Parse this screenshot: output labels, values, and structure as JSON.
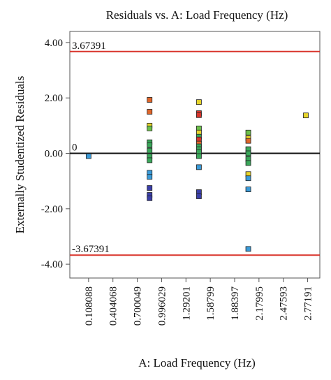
{
  "chart_data": {
    "type": "scatter",
    "title": "Residuals vs. A: Load Frequency (Hz)",
    "xlabel": "A: Load Frequency (Hz)",
    "ylabel": "Externally Studentized Residuals",
    "xlim": [
      -0.12,
      2.92
    ],
    "ylim": [
      -4.5,
      4.4
    ],
    "x_ticks": [
      0.108088,
      0.404068,
      0.700049,
      0.996029,
      1.29201,
      1.58799,
      1.88397,
      2.17995,
      2.47593,
      2.77191
    ],
    "x_tick_labels": [
      "0.108088",
      "0.404068",
      "0.700049",
      "0.996029",
      "1.29201",
      "1.58799",
      "1.88397",
      "2.17995",
      "2.47593",
      "2.77191"
    ],
    "y_ticks": [
      4.0,
      2.0,
      0.0,
      -2.0,
      -4.0
    ],
    "y_tick_labels": [
      "4.00",
      "2.00",
      "0.00",
      "-2.00",
      "-4.00"
    ],
    "reference_lines": [
      {
        "value": 3.67391,
        "label": "3.67391",
        "color": "#d9342b"
      },
      {
        "value": 0,
        "label": "0",
        "color": "#111111"
      },
      {
        "value": -3.67391,
        "label": "-3.67391",
        "color": "#d9342b"
      }
    ],
    "grid": false,
    "points": [
      {
        "x": 0.108088,
        "y": -0.1,
        "color": "#3a9bd9"
      },
      {
        "x": 0.85,
        "y": 1.93,
        "color": "#e0662a"
      },
      {
        "x": 0.85,
        "y": 1.5,
        "color": "#e0662a"
      },
      {
        "x": 0.85,
        "y": 1.0,
        "color": "#e6d42b"
      },
      {
        "x": 0.85,
        "y": 0.9,
        "color": "#6cc04a"
      },
      {
        "x": 0.85,
        "y": 0.4,
        "color": "#3aa85a"
      },
      {
        "x": 0.85,
        "y": 0.3,
        "color": "#3aa85a"
      },
      {
        "x": 0.85,
        "y": 0.1,
        "color": "#3aa85a"
      },
      {
        "x": 0.85,
        "y": -0.1,
        "color": "#3aa85a"
      },
      {
        "x": 0.85,
        "y": -0.25,
        "color": "#3aa85a"
      },
      {
        "x": 0.85,
        "y": -0.7,
        "color": "#3a9bd9"
      },
      {
        "x": 0.85,
        "y": -0.85,
        "color": "#3a9bd9"
      },
      {
        "x": 0.85,
        "y": -1.25,
        "color": "#3b3fa8"
      },
      {
        "x": 0.85,
        "y": -1.5,
        "color": "#3b3fa8"
      },
      {
        "x": 0.85,
        "y": -1.62,
        "color": "#3b3fa8"
      },
      {
        "x": 1.45,
        "y": 1.85,
        "color": "#e6d42b"
      },
      {
        "x": 1.45,
        "y": 1.45,
        "color": "#d9342b"
      },
      {
        "x": 1.45,
        "y": 1.38,
        "color": "#d9342b"
      },
      {
        "x": 1.45,
        "y": 0.9,
        "color": "#6cc04a"
      },
      {
        "x": 1.45,
        "y": 0.75,
        "color": "#e6d42b"
      },
      {
        "x": 1.45,
        "y": 0.6,
        "color": "#3aa85a"
      },
      {
        "x": 1.45,
        "y": 0.5,
        "color": "#d9342b"
      },
      {
        "x": 1.45,
        "y": 0.35,
        "color": "#e0662a"
      },
      {
        "x": 1.45,
        "y": 0.25,
        "color": "#3aa85a"
      },
      {
        "x": 1.45,
        "y": 0.15,
        "color": "#3aa85a"
      },
      {
        "x": 1.45,
        "y": 0.05,
        "color": "#3aa85a"
      },
      {
        "x": 1.45,
        "y": -0.1,
        "color": "#3aa85a"
      },
      {
        "x": 1.45,
        "y": -0.5,
        "color": "#3a9bd9"
      },
      {
        "x": 1.45,
        "y": -1.4,
        "color": "#3b3fa8"
      },
      {
        "x": 1.45,
        "y": -1.55,
        "color": "#3b3fa8"
      },
      {
        "x": 2.05,
        "y": 0.75,
        "color": "#6cc04a"
      },
      {
        "x": 2.05,
        "y": 0.55,
        "color": "#e6d42b"
      },
      {
        "x": 2.05,
        "y": 0.45,
        "color": "#e0662a"
      },
      {
        "x": 2.05,
        "y": 0.15,
        "color": "#3aa85a"
      },
      {
        "x": 2.05,
        "y": 0.0,
        "color": "#3aa85a"
      },
      {
        "x": 2.05,
        "y": -0.2,
        "color": "#3aa85a"
      },
      {
        "x": 2.05,
        "y": -0.35,
        "color": "#3aa85a"
      },
      {
        "x": 2.05,
        "y": -0.75,
        "color": "#e6d42b"
      },
      {
        "x": 2.05,
        "y": -0.9,
        "color": "#3a9bd9"
      },
      {
        "x": 2.05,
        "y": -1.3,
        "color": "#3a9bd9"
      },
      {
        "x": 2.05,
        "y": -3.45,
        "color": "#3a9bd9"
      },
      {
        "x": 2.75,
        "y": 1.37,
        "color": "#e6d42b"
      }
    ]
  }
}
